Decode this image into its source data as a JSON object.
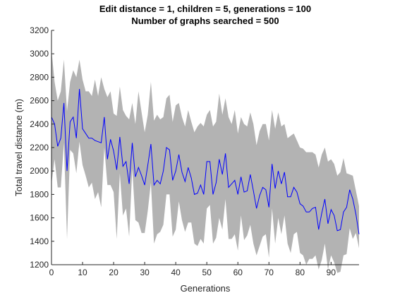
{
  "chart_data": {
    "type": "line",
    "title_line1": "Edit distance = 1, children = 5, generations = 100",
    "title_line2": "Number of graphs searched = 500",
    "xlabel": "Generations",
    "ylabel": "Total travel distance (m)",
    "xlim": [
      0,
      99
    ],
    "ylim": [
      1200,
      3200
    ],
    "xticks": [
      0,
      10,
      20,
      30,
      40,
      50,
      60,
      70,
      80,
      90
    ],
    "yticks": [
      1200,
      1400,
      1600,
      1800,
      2000,
      2200,
      2400,
      2600,
      2800,
      3000,
      3200
    ],
    "grid": false,
    "colors": {
      "line": "#0000ff",
      "band": "#b3b3b3",
      "axes": "#262626"
    },
    "x": [
      0,
      1,
      2,
      3,
      4,
      5,
      6,
      7,
      8,
      9,
      10,
      11,
      12,
      13,
      14,
      15,
      16,
      17,
      18,
      19,
      20,
      21,
      22,
      23,
      24,
      25,
      26,
      27,
      28,
      29,
      30,
      31,
      32,
      33,
      34,
      35,
      36,
      37,
      38,
      39,
      40,
      41,
      42,
      43,
      44,
      45,
      46,
      47,
      48,
      49,
      50,
      51,
      52,
      53,
      54,
      55,
      56,
      57,
      58,
      59,
      60,
      61,
      62,
      63,
      64,
      65,
      66,
      67,
      68,
      69,
      70,
      71,
      72,
      73,
      74,
      75,
      76,
      77,
      78,
      79,
      80,
      81,
      82,
      83,
      84,
      85,
      86,
      87,
      88,
      89,
      90,
      91,
      92,
      93,
      94,
      95,
      96,
      97,
      98,
      99
    ],
    "series": [
      {
        "values": [
          2460,
          2400,
          2210,
          2280,
          2580,
          2000,
          2420,
          2460,
          2280,
          2700,
          2360,
          2320,
          2280,
          2280,
          2260,
          2250,
          2240,
          2460,
          2100,
          2270,
          2170,
          2010,
          2290,
          2040,
          2080,
          1890,
          2240,
          1950,
          2030,
          1960,
          1880,
          2050,
          2230,
          1880,
          1920,
          1890,
          2000,
          2200,
          2180,
          1920,
          2000,
          2140,
          1990,
          1910,
          2030,
          1940,
          1800,
          1810,
          1880,
          1800,
          2080,
          2080,
          1800,
          1900,
          2100,
          1970,
          2150,
          1860,
          1890,
          1920,
          1800,
          1950,
          1820,
          1830,
          1970,
          1830,
          1680,
          1790,
          1860,
          1840,
          1690,
          2060,
          1850,
          2000,
          1890,
          1990,
          1780,
          1780,
          1860,
          1820,
          1720,
          1700,
          1650,
          1650,
          1680,
          1690,
          1500,
          1640,
          1760,
          1550,
          1670,
          1620,
          1490,
          1500,
          1650,
          1690,
          1840,
          1760,
          1630,
          1460
        ]
      }
    ],
    "band": {
      "upper": [
        3030,
        2760,
        2600,
        2680,
        2950,
        2510,
        2760,
        2860,
        2800,
        2950,
        2780,
        2680,
        2680,
        2640,
        2780,
        2640,
        2800,
        2700,
        2630,
        2680,
        2490,
        2470,
        2720,
        2520,
        2470,
        2440,
        2580,
        2400,
        2680,
        2500,
        2330,
        2480,
        2760,
        2430,
        2480,
        2440,
        2460,
        2620,
        2650,
        2420,
        2560,
        2580,
        2460,
        2380,
        2520,
        2420,
        2330,
        2380,
        2410,
        2380,
        2480,
        2520,
        2380,
        2420,
        2660,
        2480,
        2620,
        2460,
        2400,
        2520,
        2320,
        2460,
        2400,
        2380,
        2500,
        2400,
        2220,
        2340,
        2400,
        2400,
        2260,
        2520,
        2360,
        2500,
        2380,
        2400,
        2280,
        2300,
        2320,
        2260,
        2200,
        2190,
        2160,
        2160,
        2160,
        2140,
        2030,
        2140,
        2200,
        2080,
        2100,
        2060,
        1960,
        1990,
        2110,
        1980,
        1970,
        1960,
        1830,
        1700
      ],
      "lower": [
        1890,
        2100,
        1860,
        1860,
        2240,
        1420,
        2180,
        2150,
        1980,
        2250,
        2050,
        1960,
        1860,
        1900,
        1760,
        1820,
        1690,
        2200,
        1880,
        1880,
        1820,
        1420,
        1980,
        1620,
        1680,
        1440,
        2020,
        1580,
        1560,
        1470,
        1470,
        1660,
        1900,
        1380,
        1460,
        1480,
        1540,
        1800,
        1800,
        1440,
        1500,
        1740,
        1580,
        1480,
        1560,
        1560,
        1380,
        1360,
        1420,
        1380,
        1680,
        1710,
        1380,
        1430,
        1600,
        1500,
        1760,
        1420,
        1420,
        1460,
        1320,
        1620,
        1410,
        1450,
        1540,
        1380,
        1280,
        1360,
        1440,
        1460,
        1260,
        1680,
        1380,
        1600,
        1460,
        1620,
        1380,
        1300,
        1460,
        1480,
        1300,
        1280,
        1200,
        1250,
        1250,
        1280,
        1160,
        1240,
        1380,
        1160,
        1280,
        1220,
        1130,
        1140,
        1280,
        1290,
        1510,
        1420,
        1470,
        1340
      ]
    }
  }
}
